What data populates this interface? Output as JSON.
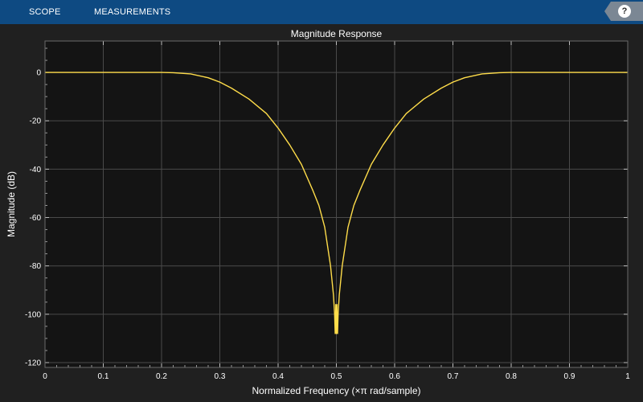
{
  "toolstrip": {
    "tabs": [
      "SCOPE",
      "MEASUREMENTS"
    ],
    "help_label": "?",
    "colors": {
      "background": "#0e4a82"
    }
  },
  "chart_data": {
    "type": "line",
    "title": "Magnitude Response",
    "xlabel": "Normalized Frequency (×π rad/sample)",
    "ylabel": "Magnitude (dB)",
    "xlim": [
      0,
      1
    ],
    "ylim": [
      -122,
      13
    ],
    "x_ticks": [
      0,
      0.1,
      0.2,
      0.3,
      0.4,
      0.5,
      0.6,
      0.7,
      0.8,
      0.9,
      1
    ],
    "x_tick_labels": [
      "0",
      "0.1",
      "0.2",
      "0.3",
      "0.4",
      "0.5",
      "0.6",
      "0.7",
      "0.8",
      "0.9",
      "1"
    ],
    "y_ticks": [
      0,
      -20,
      -40,
      -60,
      -80,
      -100,
      -120
    ],
    "y_tick_labels": [
      "0",
      "-20",
      "-40",
      "-60",
      "-80",
      "-100",
      "-120"
    ],
    "grid": true,
    "colors": {
      "line": "#ffdd4a",
      "axes_bg": "#141414",
      "figure_bg": "#202020",
      "grid": "#4a4a4a"
    },
    "series": [
      {
        "x": [
          0,
          0.1,
          0.2,
          0.22,
          0.25,
          0.28,
          0.3,
          0.32,
          0.35,
          0.38,
          0.4,
          0.42,
          0.44,
          0.46,
          0.47,
          0.48,
          0.49,
          0.495,
          0.497,
          0.498,
          0.4985,
          0.499,
          0.4995,
          0.5,
          0.5005,
          0.501,
          0.5015,
          0.502,
          0.503,
          0.505,
          0.51,
          0.52,
          0.53,
          0.54,
          0.56,
          0.58,
          0.6,
          0.62,
          0.65,
          0.68,
          0.7,
          0.72,
          0.75,
          0.78,
          0.8,
          0.9,
          1
        ],
        "y": [
          0,
          0,
          0,
          -0.1,
          -0.6,
          -2.2,
          -4,
          -6.5,
          -11,
          -17,
          -23,
          -30,
          -38,
          -49,
          -55,
          -64,
          -80,
          -92,
          -100,
          -108,
          -104,
          -96,
          -100,
          -108,
          -100,
          -96,
          -104,
          -108,
          -100,
          -92,
          -80,
          -64,
          -55,
          -49,
          -38,
          -30,
          -23,
          -17,
          -11,
          -6.5,
          -4,
          -2.2,
          -0.6,
          -0.1,
          0,
          0,
          0
        ]
      }
    ]
  }
}
